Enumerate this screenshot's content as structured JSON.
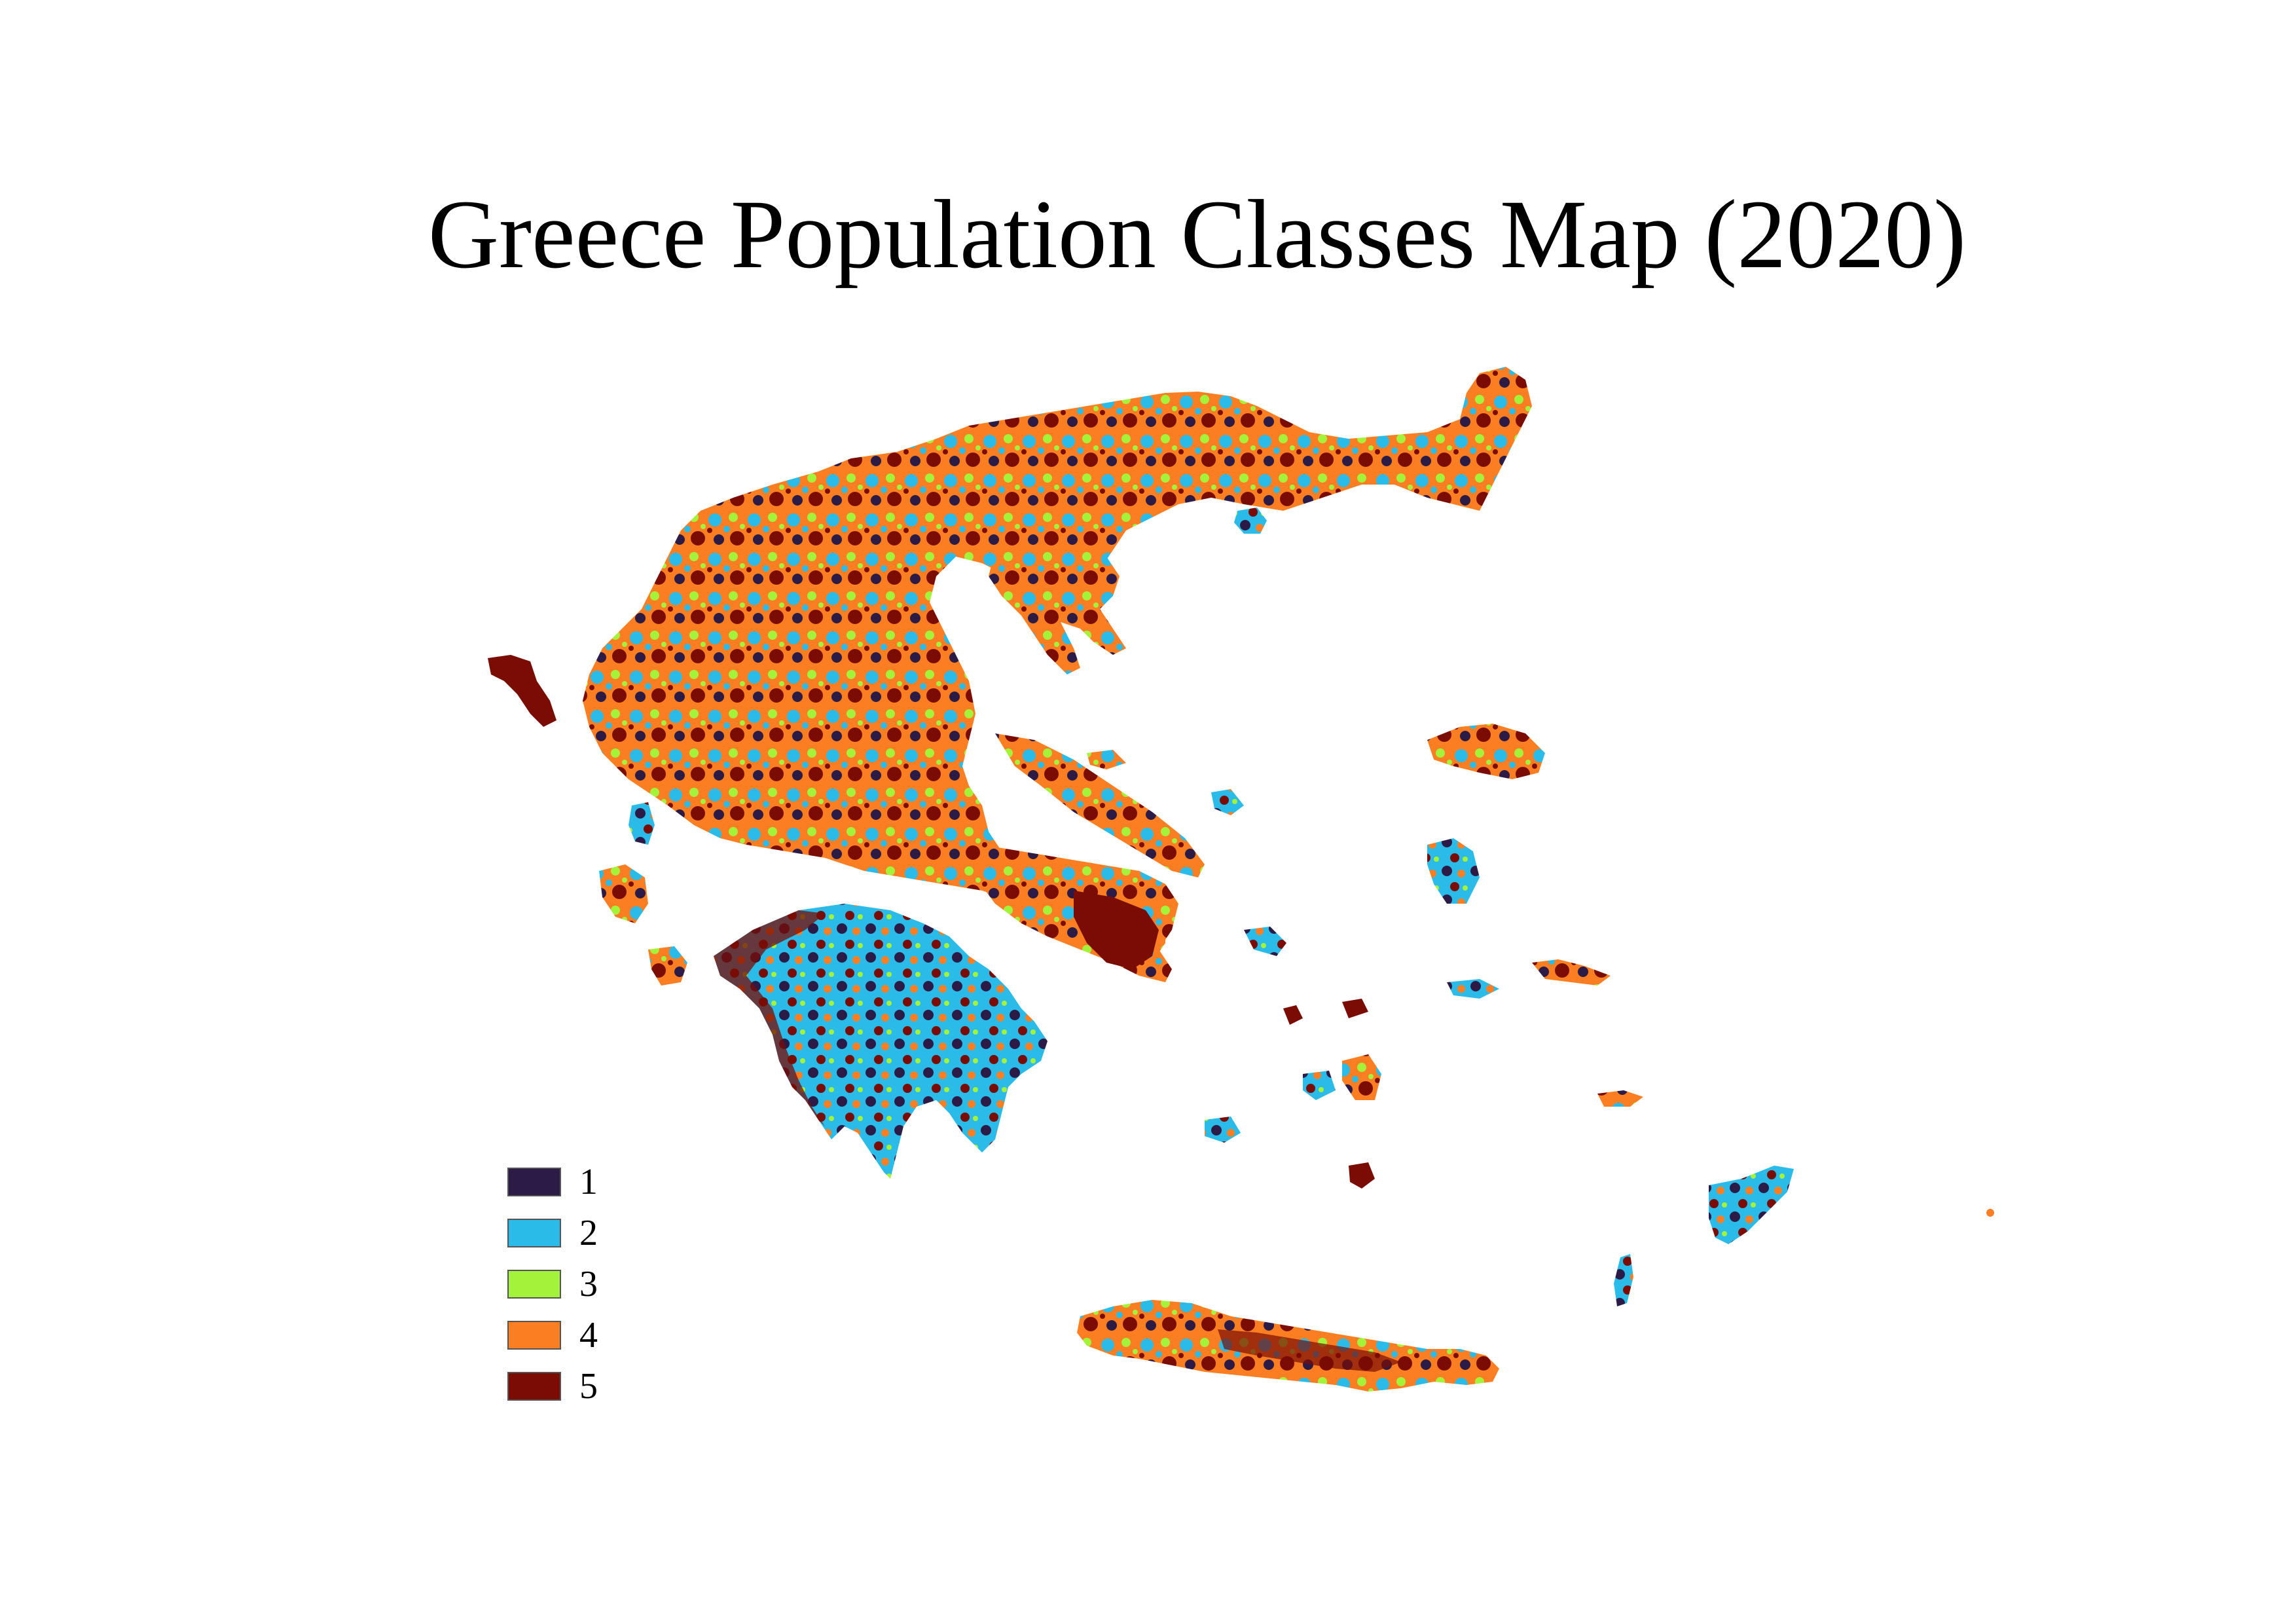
{
  "title": "Greece Population Classes Map (2020)",
  "legend": {
    "items": [
      {
        "label": "1",
        "color": "#2d1b47"
      },
      {
        "label": "2",
        "color": "#2bbbe8"
      },
      {
        "label": "3",
        "color": "#a4f23a"
      },
      {
        "label": "4",
        "color": "#fb7f22"
      },
      {
        "label": "5",
        "color": "#7a0c04"
      }
    ]
  },
  "colors": {
    "class_1": "#2d1b47",
    "class_2": "#2bbbe8",
    "class_3": "#a4f23a",
    "class_4": "#fb7f22",
    "class_5": "#7a0c04",
    "background": "#ffffff"
  }
}
